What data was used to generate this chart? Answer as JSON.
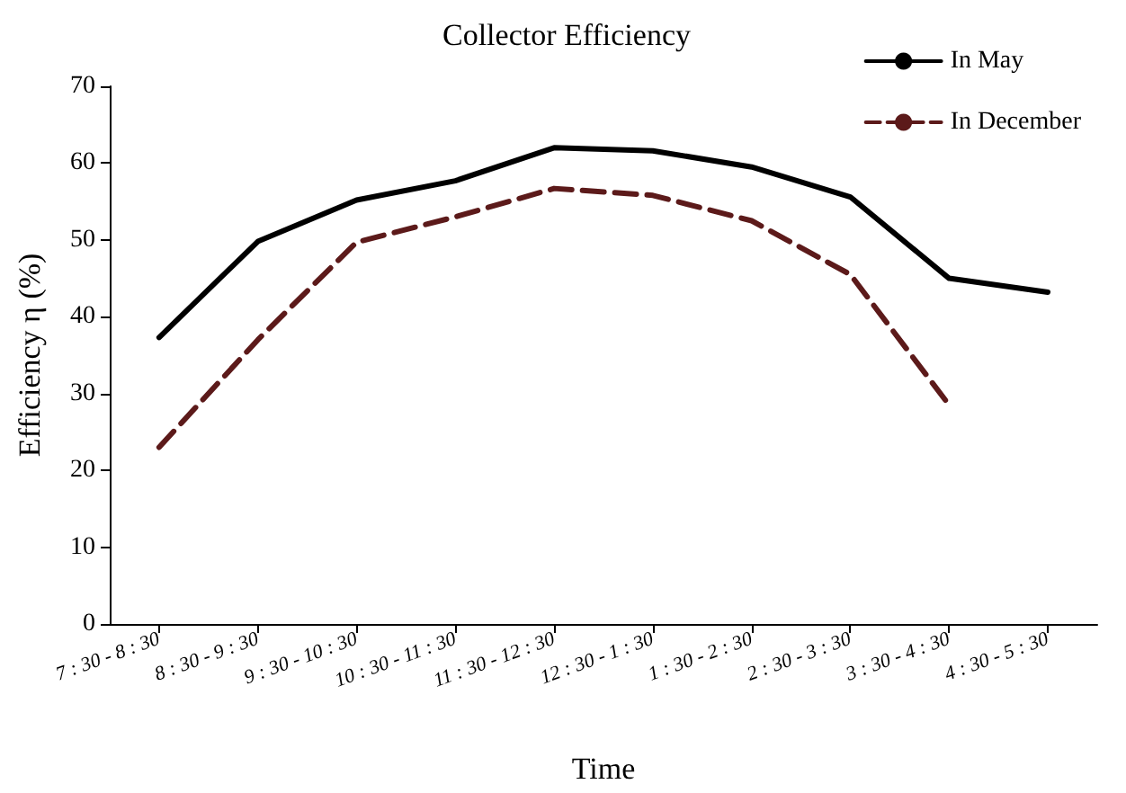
{
  "chart_data": {
    "type": "line",
    "title": "Collector Efficiency",
    "xlabel": "Time",
    "ylabel": "Efficiency η (%)",
    "categories": [
      "7 : 30 - 8 : 30",
      "8 : 30 - 9 : 30",
      "9 : 30 - 10 : 30",
      "10 : 30 - 11 : 30",
      "11 : 30 - 12 : 30",
      "12 : 30 - 1 : 30",
      "1 : 30 - 2 : 30",
      "2 : 30 - 3 : 30",
      "3 : 30 - 4 : 30",
      "4 : 30 - 5 : 30"
    ],
    "series": [
      {
        "name": "In May",
        "color": "#000000",
        "line_style": "solid",
        "values": [
          37.3,
          49.8,
          55.2,
          57.7,
          62.0,
          61.6,
          59.5,
          55.6,
          45.0,
          43.2
        ]
      },
      {
        "name": "In December",
        "color": "#5c1a1a",
        "line_style": "dashed",
        "values": [
          23.0,
          37.0,
          49.7,
          53.0,
          56.7,
          55.8,
          52.5,
          45.5,
          28.5,
          null
        ]
      }
    ],
    "ylim": [
      0,
      70
    ],
    "yticks": [
      0,
      10,
      20,
      30,
      40,
      50,
      60,
      70
    ],
    "grid": false,
    "legend": "top right",
    "marker": "none"
  }
}
